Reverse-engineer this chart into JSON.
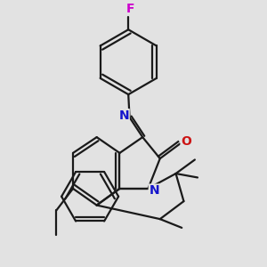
{
  "background_color": "#e2e2e2",
  "bond_color": "#1a1a1a",
  "bond_width": 1.6,
  "atom_colors": {
    "N": "#1414cc",
    "O": "#cc1414",
    "F": "#cc00cc"
  },
  "figsize": [
    3.0,
    3.0
  ],
  "dpi": 100
}
